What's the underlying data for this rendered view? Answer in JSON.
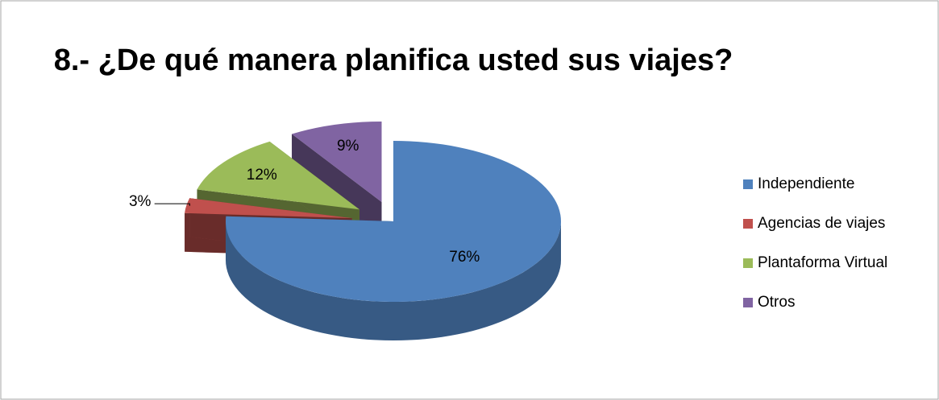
{
  "chart_data": {
    "type": "pie",
    "title": "8.- ¿De qué manera planifica usted sus viajes?",
    "categories": [
      "Independiente",
      "Agencias de viajes",
      "Plantaforma Virtual",
      "Otros"
    ],
    "values": [
      76,
      3,
      12,
      9
    ],
    "value_labels": [
      "76%",
      "3%",
      "12%",
      "9%"
    ],
    "colors": [
      "#4f81bd",
      "#c0504d",
      "#9bbb59",
      "#8064a2"
    ],
    "legend": "right"
  }
}
